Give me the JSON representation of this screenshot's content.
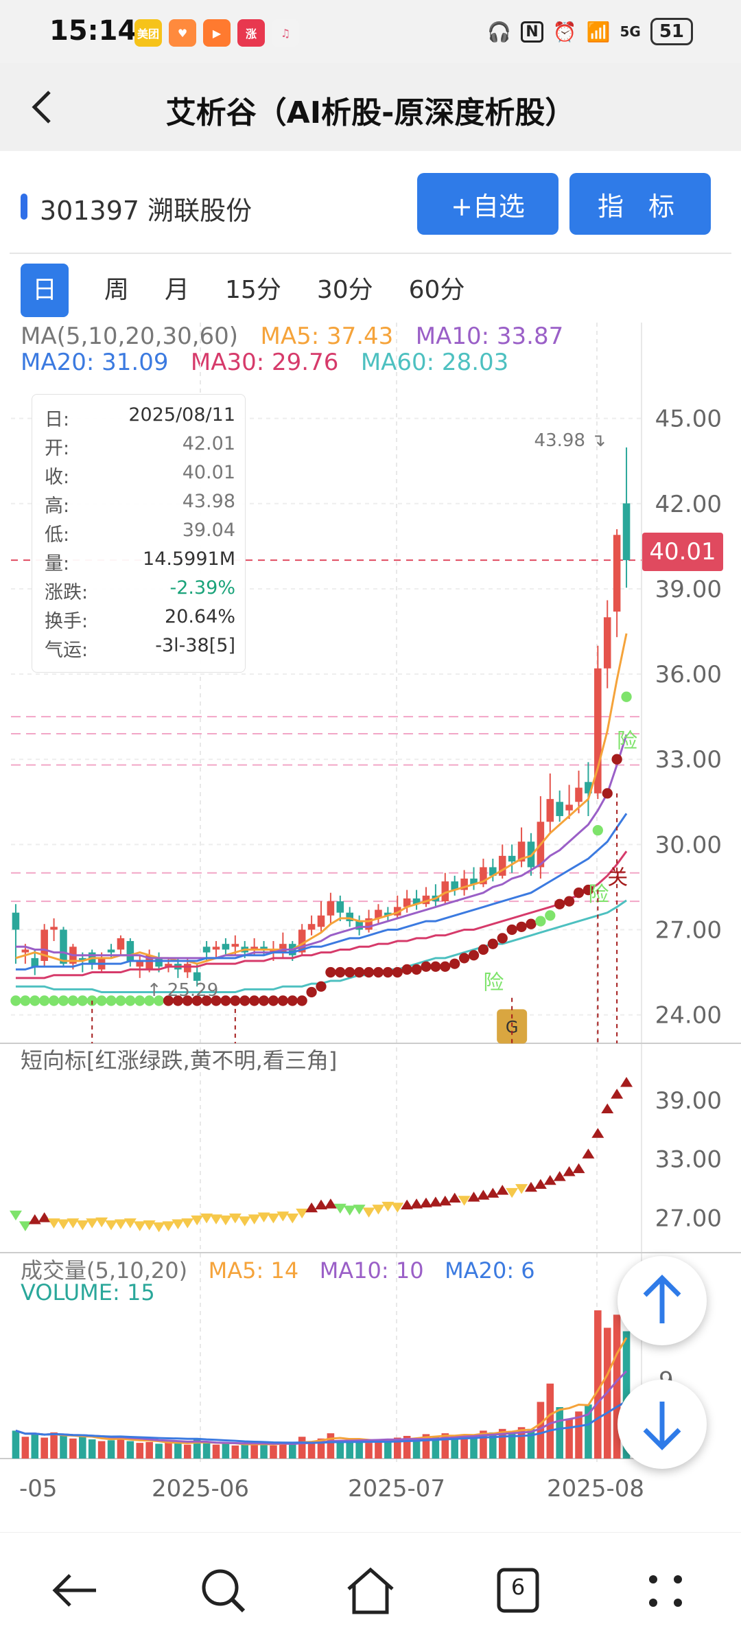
{
  "status": {
    "time": "15:14",
    "apps": [
      {
        "label": "美团",
        "color": "#f6c31a"
      },
      {
        "label": "♥",
        "color": "#ff8a3d"
      },
      {
        "label": "▶",
        "color": "#ff7a2f"
      },
      {
        "label": "涨",
        "color": "#e8384f"
      },
      {
        "label": "♫",
        "color": "#f3f3f3"
      }
    ],
    "right_icons": [
      "headphones-icon",
      "nfc-icon",
      "alarm-icon",
      "wifi-icon",
      "signal-5g-icon"
    ],
    "network": "5G",
    "battery": "51"
  },
  "header": {
    "title": "艾析谷（AI析股-原深度析股）",
    "back_icon": "chevron-left-icon"
  },
  "stock": {
    "code_name": "301397 溯联股份",
    "fav_button": "+自选",
    "indicator_button": "指 标"
  },
  "tabs": [
    {
      "label": "日",
      "active": true
    },
    {
      "label": "周"
    },
    {
      "label": "月"
    },
    {
      "label": "15分"
    },
    {
      "label": "30分"
    },
    {
      "label": "60分"
    }
  ],
  "ma_legend": {
    "line1": [
      {
        "text": "MA(5,10,20,30,60)",
        "color": "#777777"
      },
      {
        "text": "MA5: 37.43",
        "color": "#f5a33a"
      },
      {
        "text": "MA10: 33.87",
        "color": "#9a5fc7"
      }
    ],
    "line2": [
      {
        "text": "MA20: 31.09",
        "color": "#3b7ae0"
      },
      {
        "text": "MA30: 29.76",
        "color": "#d63a6a"
      },
      {
        "text": "MA60: 28.03",
        "color": "#4dc0c0"
      }
    ]
  },
  "tooltip": {
    "rows": [
      {
        "k": "日:",
        "v": "2025/08/11",
        "c": "#333333"
      },
      {
        "k": "开:",
        "v": "42.01",
        "c": "#777777"
      },
      {
        "k": "收:",
        "v": "40.01",
        "c": "#777777"
      },
      {
        "k": "高:",
        "v": "43.98",
        "c": "#777777"
      },
      {
        "k": "低:",
        "v": "39.04",
        "c": "#777777"
      },
      {
        "k": "量:",
        "v": "14.5991M",
        "c": "#333333"
      },
      {
        "k": "涨跌:",
        "v": "-2.39%",
        "c": "#1aa37a"
      },
      {
        "k": "换手:",
        "v": "20.64%",
        "c": "#333333"
      },
      {
        "k": "气运:",
        "v": "-3l-38[5]",
        "c": "#333333"
      }
    ]
  },
  "main_chart": {
    "price_axis": [
      "45.00",
      "42.00",
      "39.00",
      "36.00",
      "33.00",
      "30.00",
      "27.00",
      "24.00"
    ],
    "ylim": [
      23.0,
      46.2
    ],
    "current_price_tag": "40.01",
    "high_label": "43.98",
    "low_label": "25.29",
    "markers": {
      "risk": "险",
      "guan": "关",
      "g": "G"
    },
    "colors": {
      "up": "#e5534b",
      "down": "#2aa79a",
      "dot_red": "#a51c1c",
      "dot_green": "#7ee36b"
    }
  },
  "short_indicator": {
    "title": "短向标[红涨绿跌,黄不明,看三角]",
    "axis": [
      "39.00",
      "33.00",
      "27.00"
    ],
    "ylim": [
      24.5,
      42.0
    ]
  },
  "volume": {
    "title": "成交量(5,10,20)",
    "ma5": "MA5: 14",
    "ma10": "MA10: 10",
    "ma20": "MA20: 6",
    "volume_label": "VOLUME: 15",
    "axis": [
      "9"
    ]
  },
  "x_axis": [
    "-05",
    "2025-06",
    "2025-07",
    "2025-08"
  ],
  "nav": {
    "back_icon": "back-arrow-icon",
    "search_icon": "search-icon",
    "home_icon": "home-icon",
    "tabs_count": "6",
    "menu_icon": "menu-dots-icon"
  },
  "chart_data": {
    "type": "candlestick",
    "title": "",
    "ylim": [
      23.0,
      46.2
    ],
    "ohlc": [
      [
        27.6,
        27.0,
        25.8,
        27.9
      ],
      [
        26.2,
        26.3,
        25.8,
        26.5
      ],
      [
        26.0,
        25.7,
        25.4,
        26.3
      ],
      [
        25.9,
        27.0,
        25.7,
        27.2
      ],
      [
        27.0,
        27.1,
        26.6,
        27.4
      ],
      [
        27.0,
        25.8,
        25.7,
        27.1
      ],
      [
        25.8,
        26.4,
        25.6,
        26.5
      ],
      [
        26.0,
        25.9,
        25.5,
        26.2
      ],
      [
        26.2,
        25.8,
        25.6,
        26.3
      ],
      [
        25.6,
        26.0,
        25.5,
        26.2
      ],
      [
        26.3,
        26.2,
        26.0,
        26.5
      ],
      [
        26.3,
        26.7,
        26.1,
        26.8
      ],
      [
        26.6,
        25.9,
        25.7,
        26.7
      ],
      [
        25.7,
        25.9,
        25.3,
        26.1
      ],
      [
        25.6,
        26.1,
        25.5,
        26.3
      ],
      [
        26.0,
        25.7,
        25.5,
        26.2
      ],
      [
        25.7,
        25.8,
        25.5,
        26.0
      ],
      [
        25.8,
        25.6,
        25.3,
        26.0
      ],
      [
        25.5,
        25.8,
        25.3,
        26.0
      ],
      [
        25.5,
        25.2,
        25.0,
        25.8
      ],
      [
        26.4,
        26.2,
        25.9,
        26.6
      ],
      [
        26.3,
        26.4,
        26.0,
        26.6
      ],
      [
        26.5,
        26.3,
        26.1,
        26.7
      ],
      [
        26.4,
        26.5,
        26.1,
        26.8
      ],
      [
        26.4,
        26.2,
        26.0,
        26.6
      ],
      [
        26.3,
        26.4,
        26.1,
        26.7
      ],
      [
        26.4,
        26.3,
        26.1,
        26.6
      ],
      [
        26.2,
        26.3,
        25.9,
        26.6
      ],
      [
        26.2,
        26.5,
        26.0,
        26.9
      ],
      [
        26.5,
        26.1,
        25.9,
        26.6
      ],
      [
        26.2,
        27.0,
        26.1,
        27.2
      ],
      [
        27.0,
        27.2,
        26.8,
        27.5
      ],
      [
        27.1,
        27.5,
        26.9,
        28.0
      ],
      [
        27.5,
        28.0,
        27.2,
        28.3
      ],
      [
        28.0,
        27.6,
        27.3,
        28.2
      ],
      [
        27.6,
        27.3,
        27.1,
        27.8
      ],
      [
        27.3,
        27.0,
        26.8,
        27.5
      ],
      [
        27.0,
        27.4,
        26.9,
        27.7
      ],
      [
        27.4,
        27.7,
        27.2,
        27.9
      ],
      [
        27.6,
        27.5,
        27.3,
        27.8
      ],
      [
        27.5,
        27.8,
        27.4,
        28.2
      ],
      [
        27.8,
        28.1,
        27.6,
        28.4
      ],
      [
        28.1,
        27.9,
        27.7,
        28.4
      ],
      [
        27.9,
        28.2,
        27.8,
        28.5
      ],
      [
        28.2,
        28.0,
        27.8,
        28.6
      ],
      [
        28.0,
        28.7,
        27.9,
        29.0
      ],
      [
        28.7,
        28.4,
        28.2,
        28.9
      ],
      [
        28.4,
        28.8,
        28.2,
        29.1
      ],
      [
        28.8,
        28.6,
        28.4,
        29.2
      ],
      [
        28.6,
        29.2,
        28.5,
        29.5
      ],
      [
        29.2,
        28.9,
        28.7,
        29.5
      ],
      [
        28.9,
        29.6,
        28.8,
        30.0
      ],
      [
        29.6,
        29.4,
        29.0,
        30.0
      ],
      [
        29.4,
        30.1,
        29.2,
        30.6
      ],
      [
        30.1,
        29.2,
        28.9,
        30.4
      ],
      [
        29.2,
        30.8,
        28.8,
        31.7
      ],
      [
        30.8,
        31.6,
        30.4,
        32.5
      ],
      [
        31.5,
        31.0,
        30.8,
        31.9
      ],
      [
        31.2,
        31.4,
        30.9,
        32.1
      ],
      [
        31.5,
        32.0,
        31.1,
        32.6
      ],
      [
        32.2,
        31.8,
        31.0,
        32.9
      ],
      [
        31.8,
        36.2,
        31.6,
        37.0
      ],
      [
        36.2,
        38.0,
        35.5,
        38.6
      ],
      [
        38.2,
        40.9,
        37.3,
        41.1
      ],
      [
        42.01,
        40.01,
        39.04,
        43.98
      ]
    ],
    "ma": {
      "MA5": [
        26.0,
        26.1,
        26.2,
        26.1,
        26.0,
        25.9,
        25.9,
        25.9,
        26.0,
        26.0,
        26.0,
        26.1,
        26.1,
        26.2,
        26.1,
        26.0,
        26.0,
        25.9,
        25.9,
        25.8,
        25.9,
        26.0,
        26.1,
        26.2,
        26.3,
        26.3,
        26.3,
        26.3,
        26.3,
        26.3,
        26.5,
        26.7,
        26.9,
        27.2,
        27.4,
        27.4,
        27.3,
        27.3,
        27.4,
        27.5,
        27.6,
        27.8,
        27.9,
        28.0,
        28.1,
        28.3,
        28.4,
        28.5,
        28.6,
        28.7,
        28.9,
        29.1,
        29.3,
        29.5,
        29.6,
        30.0,
        30.4,
        30.7,
        31.0,
        31.3,
        31.6,
        32.7,
        34.0,
        35.8,
        37.43
      ],
      "MA10": [
        26.4,
        26.4,
        26.3,
        26.3,
        26.2,
        26.2,
        26.1,
        26.1,
        26.1,
        26.1,
        26.1,
        26.1,
        26.1,
        26.1,
        26.0,
        26.0,
        26.0,
        26.0,
        26.0,
        26.0,
        26.0,
        26.0,
        26.1,
        26.1,
        26.1,
        26.2,
        26.2,
        26.2,
        26.3,
        26.3,
        26.4,
        26.5,
        26.6,
        26.8,
        26.9,
        27.0,
        27.1,
        27.1,
        27.2,
        27.3,
        27.4,
        27.5,
        27.6,
        27.7,
        27.8,
        27.9,
        28.0,
        28.1,
        28.2,
        28.3,
        28.5,
        28.6,
        28.8,
        28.9,
        29.1,
        29.3,
        29.6,
        29.8,
        30.1,
        30.4,
        30.7,
        31.2,
        31.8,
        32.8,
        33.87
      ],
      "MA20": [
        25.6,
        25.6,
        25.7,
        25.7,
        25.7,
        25.7,
        25.7,
        25.8,
        25.8,
        25.8,
        25.8,
        25.8,
        25.9,
        25.9,
        25.9,
        25.9,
        25.9,
        25.9,
        25.9,
        25.9,
        26.0,
        26.0,
        26.0,
        26.0,
        26.1,
        26.1,
        26.1,
        26.2,
        26.2,
        26.2,
        26.3,
        26.4,
        26.4,
        26.5,
        26.6,
        26.7,
        26.7,
        26.8,
        26.9,
        27.0,
        27.0,
        27.1,
        27.2,
        27.3,
        27.3,
        27.4,
        27.5,
        27.6,
        27.7,
        27.8,
        27.9,
        28.0,
        28.1,
        28.2,
        28.3,
        28.5,
        28.7,
        28.9,
        29.1,
        29.3,
        29.5,
        29.8,
        30.1,
        30.6,
        31.09
      ],
      "MA30": [
        25.3,
        25.3,
        25.3,
        25.3,
        25.4,
        25.4,
        25.4,
        25.4,
        25.5,
        25.5,
        25.5,
        25.5,
        25.6,
        25.6,
        25.6,
        25.6,
        25.7,
        25.7,
        25.7,
        25.7,
        25.8,
        25.8,
        25.8,
        25.8,
        25.9,
        25.9,
        25.9,
        26.0,
        26.0,
        26.0,
        26.1,
        26.1,
        26.2,
        26.2,
        26.3,
        26.3,
        26.4,
        26.4,
        26.5,
        26.5,
        26.6,
        26.6,
        26.7,
        26.7,
        26.8,
        26.8,
        26.9,
        27.0,
        27.0,
        27.1,
        27.2,
        27.3,
        27.4,
        27.5,
        27.6,
        27.7,
        27.8,
        27.9,
        28.1,
        28.2,
        28.4,
        28.6,
        28.9,
        29.3,
        29.76
      ],
      "MA60": [
        25.0,
        25.0,
        25.0,
        25.0,
        24.9,
        24.9,
        24.9,
        24.9,
        24.9,
        24.8,
        24.8,
        24.8,
        24.8,
        24.8,
        24.8,
        24.8,
        24.8,
        24.8,
        24.8,
        24.8,
        24.8,
        24.8,
        24.8,
        24.8,
        24.9,
        24.9,
        24.9,
        24.9,
        25.0,
        25.0,
        25.0,
        25.1,
        25.1,
        25.2,
        25.2,
        25.3,
        25.4,
        25.4,
        25.5,
        25.6,
        25.6,
        25.7,
        25.8,
        25.9,
        26.0,
        26.0,
        26.1,
        26.2,
        26.3,
        26.4,
        26.5,
        26.5,
        26.6,
        26.7,
        26.8,
        26.9,
        27.0,
        27.1,
        27.2,
        27.3,
        27.4,
        27.5,
        27.6,
        27.8,
        28.03
      ]
    },
    "dots": [
      24.5,
      24.5,
      24.5,
      24.5,
      24.5,
      24.5,
      24.5,
      24.5,
      24.5,
      24.5,
      24.5,
      24.5,
      24.5,
      24.5,
      24.5,
      24.5,
      24.5,
      24.5,
      24.5,
      24.5,
      24.5,
      24.5,
      24.5,
      24.5,
      24.5,
      24.5,
      24.5,
      24.5,
      24.5,
      24.5,
      24.5,
      24.8,
      25.0,
      25.5,
      25.5,
      25.5,
      25.5,
      25.5,
      25.5,
      25.5,
      25.5,
      25.6,
      25.6,
      25.7,
      25.7,
      25.7,
      25.8,
      26.0,
      26.1,
      26.3,
      26.5,
      26.7,
      27.0,
      27.1,
      27.2,
      27.3,
      27.5,
      27.9,
      28.0,
      28.3,
      28.4,
      30.5,
      31.8,
      33.0,
      35.2
    ],
    "dot_colors": [
      "g",
      "g",
      "g",
      "g",
      "g",
      "g",
      "g",
      "g",
      "g",
      "g",
      "g",
      "g",
      "g",
      "g",
      "g",
      "g",
      "r",
      "r",
      "r",
      "r",
      "r",
      "r",
      "r",
      "r",
      "r",
      "r",
      "r",
      "r",
      "r",
      "r",
      "r",
      "r",
      "r",
      "r",
      "r",
      "r",
      "r",
      "r",
      "r",
      "r",
      "r",
      "r",
      "r",
      "r",
      "r",
      "r",
      "r",
      "r",
      "r",
      "r",
      "r",
      "r",
      "r",
      "r",
      "r",
      "g",
      "g",
      "r",
      "r",
      "r",
      "r",
      "g",
      "r",
      "r",
      "g"
    ],
    "short_indicator": [
      27.3,
      26.2,
      26.8,
      27.0,
      26.5,
      26.4,
      26.5,
      26.3,
      26.5,
      26.6,
      26.3,
      26.4,
      26.5,
      26.2,
      26.3,
      26.1,
      26.2,
      26.4,
      26.5,
      26.8,
      27.0,
      26.9,
      26.8,
      27.0,
      26.7,
      26.9,
      27.1,
      27.0,
      27.2,
      27.0,
      27.5,
      28.0,
      28.3,
      28.4,
      28.0,
      27.8,
      27.9,
      27.6,
      27.9,
      28.2,
      28.1,
      28.3,
      28.4,
      28.5,
      28.6,
      28.7,
      29.0,
      28.8,
      29.1,
      29.3,
      29.5,
      29.8,
      29.6,
      30.0,
      30.1,
      30.4,
      30.8,
      31.2,
      31.7,
      32.0,
      33.5,
      35.6,
      38.1,
      39.6,
      40.8
    ],
    "short_colors": [
      "g",
      "g",
      "r",
      "r",
      "y",
      "y",
      "y",
      "y",
      "y",
      "y",
      "y",
      "y",
      "y",
      "y",
      "y",
      "y",
      "y",
      "y",
      "y",
      "y",
      "y",
      "y",
      "y",
      "y",
      "y",
      "y",
      "y",
      "y",
      "y",
      "y",
      "y",
      "r",
      "r",
      "r",
      "g",
      "g",
      "g",
      "y",
      "y",
      "y",
      "y",
      "r",
      "r",
      "r",
      "r",
      "r",
      "r",
      "y",
      "r",
      "r",
      "r",
      "r",
      "y",
      "y",
      "r",
      "r",
      "r",
      "r",
      "r",
      "r",
      "r",
      "r",
      "r",
      "r",
      "r"
    ],
    "volume": [
      3.2,
      2.5,
      2.9,
      2.4,
      3.0,
      2.6,
      2.3,
      2.5,
      2.2,
      2.0,
      2.1,
      2.6,
      2.0,
      1.8,
      1.9,
      1.7,
      1.8,
      1.9,
      1.6,
      2.2,
      1.8,
      1.6,
      1.7,
      1.5,
      1.6,
      1.8,
      1.7,
      1.5,
      1.9,
      1.7,
      2.5,
      2.0,
      2.3,
      2.9,
      2.1,
      1.9,
      2.0,
      1.8,
      2.2,
      2.1,
      2.4,
      2.6,
      2.3,
      2.8,
      2.5,
      2.9,
      2.6,
      2.8,
      2.7,
      3.2,
      3.0,
      3.4,
      3.1,
      3.6,
      3.4,
      6.5,
      8.6,
      5.9,
      4.5,
      5.4,
      6.2,
      17.0,
      15.0,
      16.5,
      14.6
    ],
    "volume_ylim": [
      0,
      18.5
    ],
    "x_labels": [
      "-05",
      "2025-06",
      "2025-07",
      "2025-08"
    ]
  }
}
